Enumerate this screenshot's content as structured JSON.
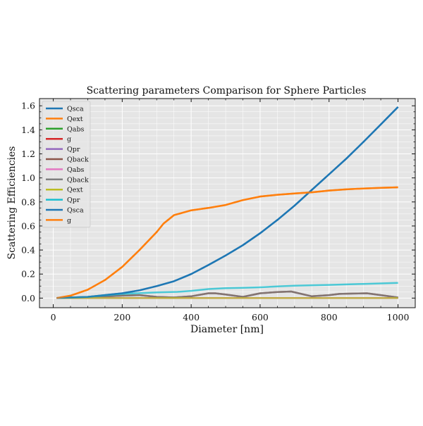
{
  "chart_data": {
    "type": "line",
    "title": "Scattering parameters Comparison for Sphere Particles",
    "xlabel": "Diameter [nm]",
    "ylabel": "Scattering Efficiencies",
    "xlim": [
      -40,
      1050
    ],
    "ylim": [
      -0.08,
      1.66
    ],
    "xticks": [
      0,
      200,
      400,
      600,
      800,
      1000
    ],
    "yticks": [
      0.0,
      0.2,
      0.4,
      0.6,
      0.8,
      1.0,
      1.2,
      1.4,
      1.6
    ],
    "ytick_labels": [
      "0.0",
      "0.2",
      "0.4",
      "0.6",
      "0.8",
      "1.0",
      "1.2",
      "1.4",
      "1.6"
    ],
    "grid": true,
    "legend_position": "upper-left",
    "series": [
      {
        "name": "Qsca",
        "color": "#1f77b4",
        "x": [
          10,
          100,
          200,
          250,
          300,
          350,
          400,
          450,
          500,
          550,
          600,
          650,
          700,
          750,
          800,
          850,
          900,
          950,
          1000
        ],
        "y": [
          0.0,
          0.01,
          0.04,
          0.065,
          0.1,
          0.14,
          0.2,
          0.275,
          0.355,
          0.44,
          0.54,
          0.65,
          0.77,
          0.9,
          1.03,
          1.16,
          1.3,
          1.445,
          1.59
        ]
      },
      {
        "name": "Qext",
        "color": "#ff7f0e",
        "x": [
          10,
          50,
          100,
          150,
          200,
          250,
          300,
          320,
          350,
          400,
          450,
          500,
          550,
          600,
          650,
          700,
          750,
          800,
          850,
          900,
          950,
          1000
        ],
        "y": [
          0.0,
          0.02,
          0.07,
          0.15,
          0.26,
          0.4,
          0.55,
          0.62,
          0.69,
          0.73,
          0.75,
          0.775,
          0.815,
          0.845,
          0.86,
          0.87,
          0.88,
          0.895,
          0.905,
          0.912,
          0.918,
          0.922
        ]
      },
      {
        "name": "Qabs",
        "color": "#2ca02c",
        "x": [
          10,
          1000
        ],
        "y": [
          0.0,
          0.0
        ]
      },
      {
        "name": "g",
        "color": "#d62728",
        "x": [
          10,
          1000
        ],
        "y": [
          0.0,
          0.0
        ]
      },
      {
        "name": "Qpr",
        "color": "#9467bd",
        "x": [
          10,
          1000
        ],
        "y": [
          0.0,
          0.0
        ]
      },
      {
        "name": "Qback",
        "color": "#8c564b",
        "x": [
          10,
          100,
          200,
          250,
          300,
          350,
          400,
          450,
          470,
          500,
          550,
          600,
          650,
          690,
          750,
          800,
          830,
          870,
          910,
          950,
          1000
        ],
        "y": [
          0.0,
          0.008,
          0.02,
          0.025,
          0.01,
          0.005,
          0.015,
          0.04,
          0.04,
          0.03,
          0.01,
          0.04,
          0.05,
          0.055,
          0.015,
          0.025,
          0.035,
          0.038,
          0.04,
          0.025,
          0.005
        ]
      },
      {
        "name": "Qabs",
        "color": "#e377c2",
        "x": [
          10,
          1000
        ],
        "y": [
          0.0,
          0.0
        ]
      },
      {
        "name": "Qback",
        "color": "#7f7f7f",
        "x": [
          10,
          100,
          200,
          250,
          300,
          350,
          400,
          450,
          470,
          500,
          550,
          600,
          650,
          690,
          750,
          800,
          830,
          870,
          910,
          950,
          1000
        ],
        "y": [
          0.0,
          0.008,
          0.02,
          0.025,
          0.01,
          0.005,
          0.015,
          0.04,
          0.04,
          0.03,
          0.01,
          0.04,
          0.05,
          0.055,
          0.015,
          0.025,
          0.035,
          0.038,
          0.04,
          0.025,
          0.005
        ]
      },
      {
        "name": "Qext",
        "color": "#bcbd22",
        "x": [
          10,
          1000
        ],
        "y": [
          0.0,
          0.0
        ]
      },
      {
        "name": "Qpr",
        "color": "#17becf",
        "x": [
          10,
          100,
          200,
          300,
          360,
          400,
          450,
          500,
          550,
          600,
          650,
          700,
          750,
          800,
          850,
          900,
          950,
          1000
        ],
        "y": [
          0.0,
          0.01,
          0.035,
          0.048,
          0.052,
          0.06,
          0.075,
          0.082,
          0.085,
          0.09,
          0.097,
          0.103,
          0.107,
          0.11,
          0.114,
          0.118,
          0.122,
          0.126
        ]
      },
      {
        "name": "Qsca",
        "color": "#1f77b4",
        "x": [
          10,
          100,
          200,
          250,
          300,
          350,
          400,
          450,
          500,
          550,
          600,
          650,
          700,
          750,
          800,
          850,
          900,
          950,
          1000
        ],
        "y": [
          0.0,
          0.01,
          0.04,
          0.065,
          0.1,
          0.14,
          0.2,
          0.275,
          0.355,
          0.44,
          0.54,
          0.65,
          0.77,
          0.9,
          1.03,
          1.16,
          1.3,
          1.445,
          1.59
        ]
      },
      {
        "name": "g",
        "color": "#ff7f0e",
        "x": [
          10,
          50,
          100,
          150,
          200,
          250,
          300,
          320,
          350,
          400,
          450,
          500,
          550,
          600,
          650,
          700,
          750,
          800,
          850,
          900,
          950,
          1000
        ],
        "y": [
          0.0,
          0.02,
          0.07,
          0.15,
          0.26,
          0.4,
          0.55,
          0.62,
          0.69,
          0.73,
          0.75,
          0.775,
          0.815,
          0.845,
          0.86,
          0.87,
          0.88,
          0.895,
          0.905,
          0.912,
          0.918,
          0.922
        ]
      }
    ]
  }
}
